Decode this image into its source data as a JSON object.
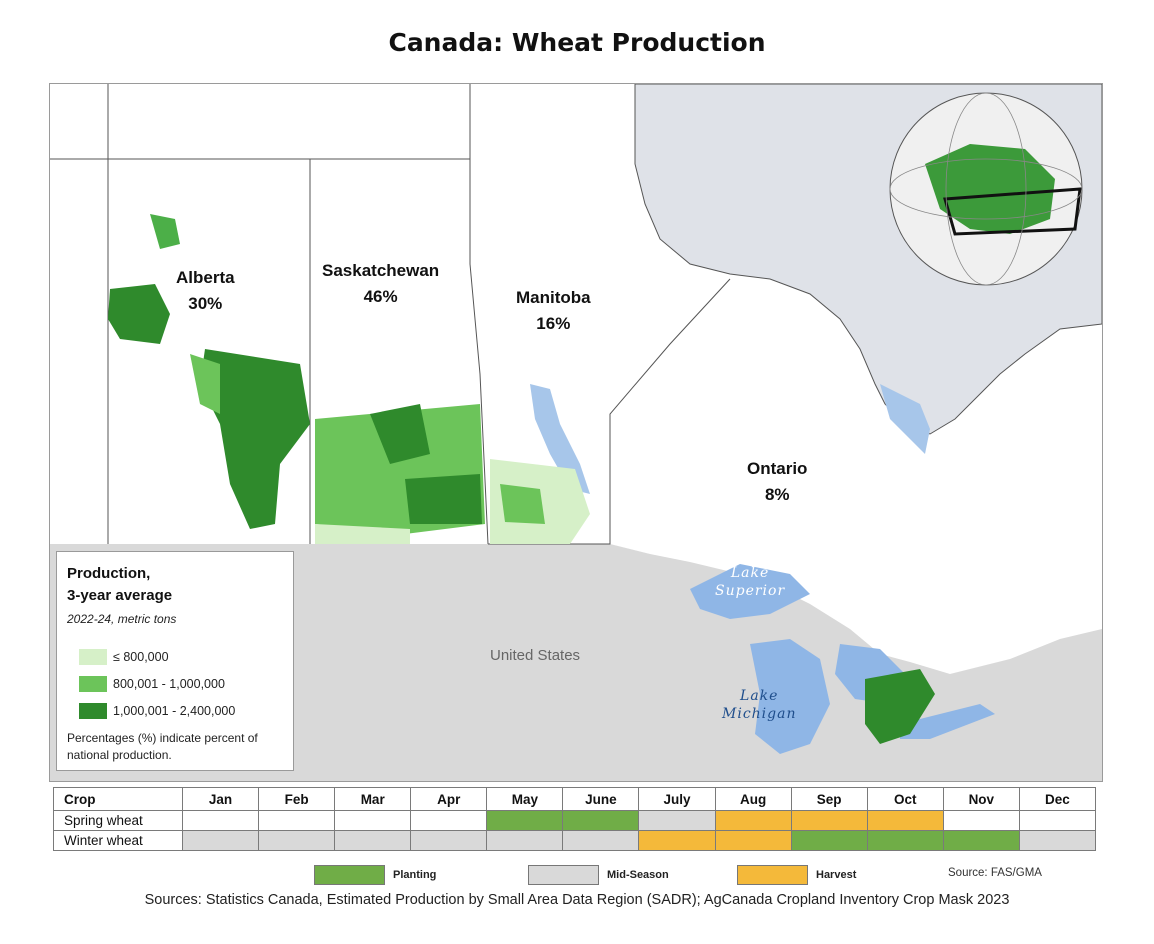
{
  "title": "Canada: Wheat Production",
  "map": {
    "provinces": [
      {
        "name": "Alberta",
        "share": "30%"
      },
      {
        "name": "Saskatchewan",
        "share": "46%"
      },
      {
        "name": "Manitoba",
        "share": "16%"
      },
      {
        "name": "Ontario",
        "share": "8%"
      }
    ],
    "labels": {
      "united_states": "United States",
      "lake_superior_1": "Lake",
      "lake_superior_2": "Superior",
      "lake_michigan_1": "Lake",
      "lake_michigan_2": "Michigan"
    }
  },
  "legend": {
    "title_line1": "Production,",
    "title_line2": "3-year average",
    "subtitle": "2022-24, metric tons",
    "classes": [
      {
        "label": "≤ 800,000",
        "color": "#d6f0c8"
      },
      {
        "label": "800,001 - 1,000,000",
        "color": "#6cc45a"
      },
      {
        "label": "1,000,001 - 2,400,000",
        "color": "#2f8a2c"
      }
    ],
    "note": "Percentages (%) indicate percent of national production."
  },
  "calendar": {
    "header_crop": "Crop",
    "months": [
      "Jan",
      "Feb",
      "Mar",
      "Apr",
      "May",
      "June",
      "July",
      "Aug",
      "Sep",
      "Oct",
      "Nov",
      "Dec"
    ],
    "rows": [
      {
        "crop": "Spring wheat",
        "stages": [
          "none",
          "none",
          "none",
          "none",
          "planting",
          "planting",
          "mid",
          "harvest",
          "harvest",
          "harvest",
          "none",
          "none"
        ]
      },
      {
        "crop": "Winter wheat",
        "stages": [
          "mid",
          "mid",
          "mid",
          "mid",
          "mid",
          "mid",
          "harvest",
          "harvest",
          "planting",
          "planting",
          "planting",
          "mid"
        ]
      }
    ],
    "stage_colors": {
      "planting": "#70ad47",
      "mid": "#d9d9d9",
      "harvest": "#f4b93a",
      "none": "#ffffff"
    }
  },
  "key": {
    "planting": "Planting",
    "mid_season": "Mid-Season",
    "harvest": "Harvest"
  },
  "source_short": "Source: FAS/GMA",
  "sources": "Sources: Statistics Canada, Estimated Production by Small Area Data Region (SADR); AgCanada Cropland Inventory Crop Mask 2023"
}
